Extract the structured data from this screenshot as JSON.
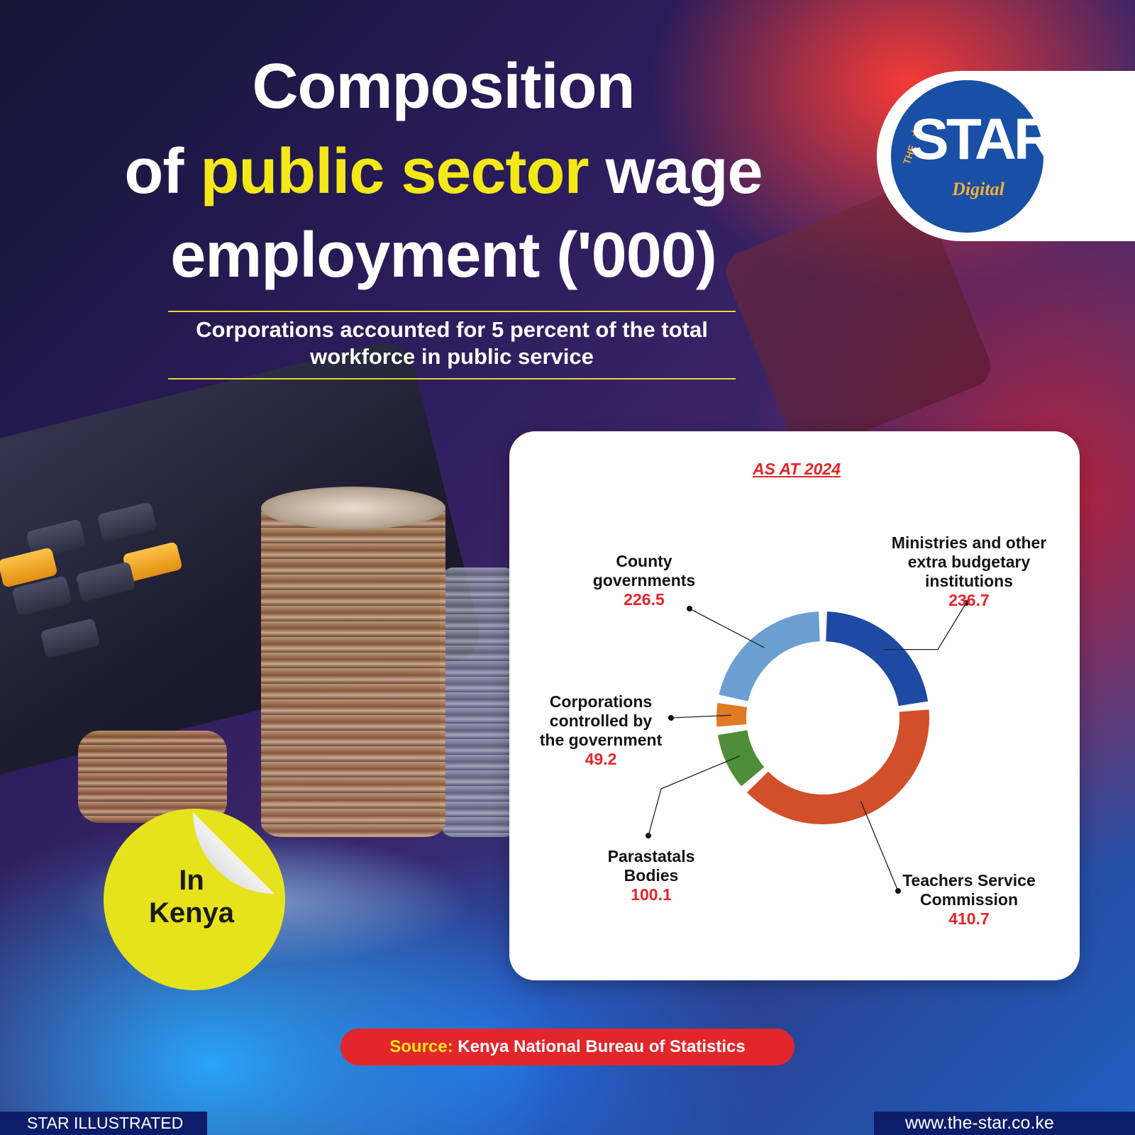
{
  "title": {
    "line1": "Composition",
    "line2_pre": "of ",
    "line2_highlight": "public sector",
    "line2_post": " wage",
    "line3": "employment ('000)"
  },
  "subtitle": {
    "line1": "Corporations accounted for 5 percent of the total",
    "line2": "workforce in public service"
  },
  "logo": {
    "the": "THE",
    "star": "STAR",
    "digital": "Digital"
  },
  "badge": {
    "line1": "In",
    "line2": "Kenya"
  },
  "chart_data": {
    "type": "pie",
    "subtitle": "AS AT 2024",
    "unit": "'000",
    "slices": [
      {
        "label_lines": [
          "Ministries and other",
          "extra budgetary",
          "institutions"
        ],
        "value": 236.7,
        "value_text": "236.7",
        "color": "#1e4aa3"
      },
      {
        "label_lines": [
          "Teachers Service",
          "Commission"
        ],
        "value": 410.7,
        "value_text": "410.7",
        "color": "#d14f2a"
      },
      {
        "label_lines": [
          "Parastatals",
          "Bodies"
        ],
        "value": 100.1,
        "value_text": "100.1",
        "color": "#4f8e38"
      },
      {
        "label_lines": [
          "Corporations",
          "controlled by",
          "the government"
        ],
        "value": 49.2,
        "value_text": "49.2",
        "color": "#e07a24"
      },
      {
        "label_lines": [
          "County",
          "governments"
        ],
        "value": 226.5,
        "value_text": "226.5",
        "color": "#6b9fd1"
      }
    ]
  },
  "source": {
    "label": "Source:",
    "text": " Kenya National Bureau of Statistics"
  },
  "footer": {
    "left": "STAR ILLUSTRATED",
    "right": "www.the-star.co.ke"
  }
}
